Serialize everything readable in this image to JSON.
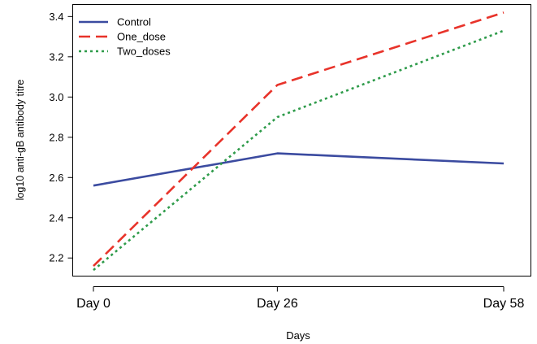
{
  "chart_data": {
    "type": "line",
    "title": "",
    "xlabel": "Days",
    "ylabel": "log10 anti-gB antibody titre",
    "categories": [
      "Day 0",
      "Day 26",
      "Day 58"
    ],
    "x": [
      0,
      26,
      58
    ],
    "ylim": [
      2.11,
      3.46
    ],
    "yticks": [
      2.2,
      2.4,
      2.6,
      2.8,
      3.0,
      3.2,
      3.4
    ],
    "ytick_labels": [
      "2.2",
      "2.4",
      "2.6",
      "2.8",
      "3.0",
      "3.2",
      "3.4"
    ],
    "grid": false,
    "legend_position": "top-left",
    "series": [
      {
        "name": "Control",
        "values": [
          2.56,
          2.72,
          2.67
        ],
        "color": "#3b4ba0",
        "line_style": "solid"
      },
      {
        "name": "One_dose",
        "values": [
          2.16,
          3.06,
          3.42
        ],
        "color": "#e8332a",
        "line_style": "dashed"
      },
      {
        "name": "Two_doses",
        "values": [
          2.14,
          2.9,
          3.33
        ],
        "color": "#2e9b4a",
        "line_style": "dotted"
      }
    ]
  }
}
